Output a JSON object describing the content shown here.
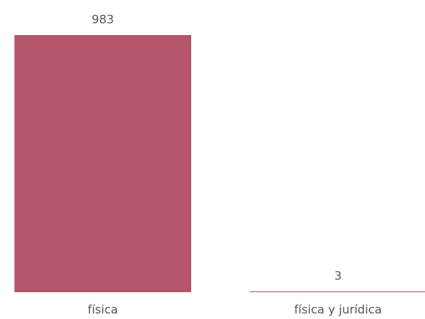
{
  "chart_data": {
    "type": "bar",
    "categories": [
      "física",
      "física y jurídica"
    ],
    "values": [
      983,
      3
    ],
    "color": "#b5566c"
  }
}
